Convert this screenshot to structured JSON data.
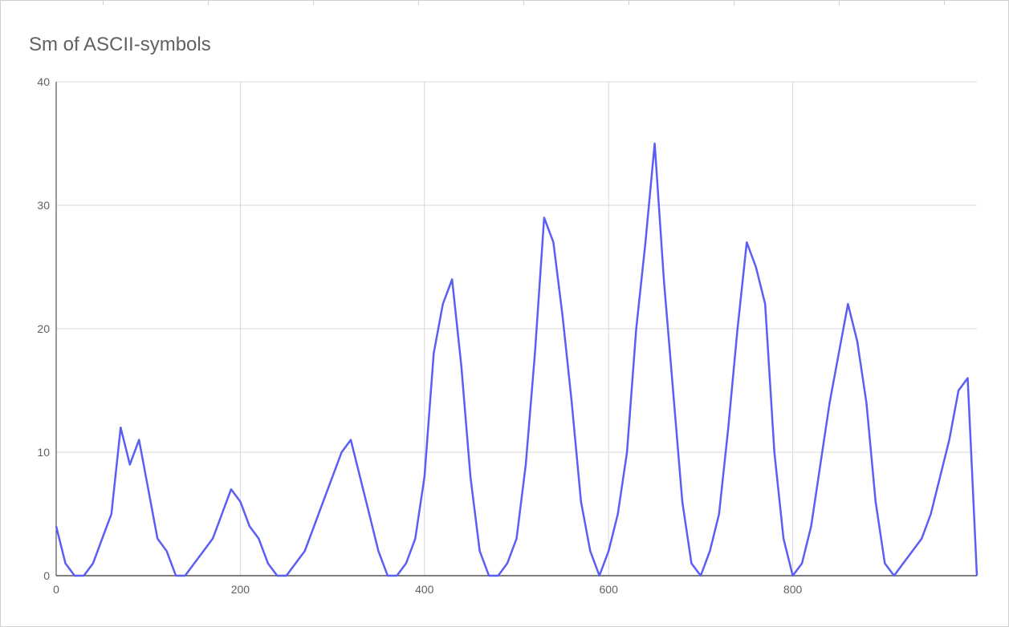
{
  "chart_data": {
    "type": "line",
    "title": "Sm of ASCII-symbols",
    "xlabel": "",
    "ylabel": "",
    "xlim": [
      0,
      1000
    ],
    "ylim": [
      0,
      40
    ],
    "x_ticks": [
      "0",
      "200",
      "400",
      "600",
      "800"
    ],
    "y_ticks": [
      "0",
      "10",
      "20",
      "30",
      "40"
    ],
    "grid": true,
    "legend": "none",
    "line_color": "#5a5ef5",
    "series": [
      {
        "x": [
          0,
          10,
          20,
          30,
          40,
          50,
          60,
          70,
          80,
          90,
          100,
          110,
          120,
          130,
          140,
          150,
          160,
          170,
          180,
          190,
          200,
          210,
          220,
          230,
          240,
          250,
          260,
          270,
          280,
          290,
          300,
          310,
          320,
          330,
          340,
          350,
          360,
          370,
          380,
          390,
          400,
          410,
          420,
          430,
          440,
          450,
          460,
          470,
          480,
          490,
          500,
          510,
          520,
          530,
          540,
          550,
          560,
          570,
          580,
          590,
          600,
          610,
          620,
          630,
          640,
          650,
          660,
          670,
          680,
          690,
          700,
          710,
          720,
          730,
          740,
          750,
          760,
          770,
          780,
          790,
          800,
          810,
          820,
          830,
          840,
          850,
          860,
          870,
          880,
          890,
          900,
          910,
          920,
          930,
          940,
          950,
          960,
          970,
          980,
          990,
          995,
          1000
        ],
        "values": [
          4,
          1,
          0,
          0,
          1,
          3,
          5,
          12,
          9,
          11,
          7,
          3,
          2,
          0,
          0,
          1,
          2,
          3,
          5,
          7,
          6,
          4,
          3,
          1,
          0,
          0,
          1,
          2,
          4,
          6,
          8,
          10,
          11,
          8,
          5,
          2,
          0,
          0,
          1,
          3,
          8,
          18,
          22,
          24,
          17,
          8,
          2,
          0,
          0,
          1,
          3,
          9,
          18,
          29,
          27,
          21,
          14,
          6,
          2,
          0,
          2,
          5,
          10,
          20,
          27,
          35,
          24,
          15,
          6,
          1,
          0,
          2,
          5,
          12,
          20,
          27,
          25,
          22,
          10,
          3,
          0,
          1,
          4,
          9,
          14,
          18,
          22,
          19,
          14,
          6,
          1,
          0,
          1,
          2,
          3,
          5,
          8,
          11,
          15,
          16,
          8,
          0
        ]
      }
    ]
  }
}
